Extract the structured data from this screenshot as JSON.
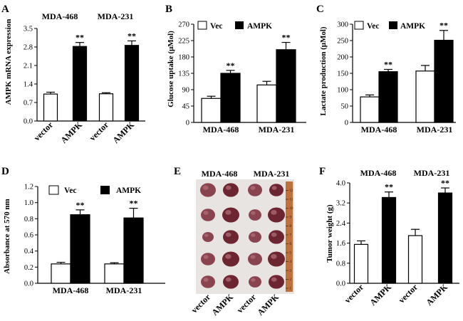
{
  "chart_data": [
    {
      "type": "bar",
      "panel": "A",
      "ylabel": "AMPK mRNA expression",
      "ylim": [
        0,
        3.5
      ],
      "yticks": [
        "0.0",
        "0.7",
        "1.4",
        "2.1",
        "2.8",
        "3.5"
      ],
      "column_titles": [
        "MDA-468",
        "MDA-231"
      ],
      "categories": [
        "vector",
        "AMPK",
        "vector",
        "AMPK"
      ],
      "values": [
        1.02,
        2.82,
        1.03,
        2.86
      ],
      "errors": [
        0.07,
        0.15,
        0.04,
        0.17
      ],
      "fills": [
        "white",
        "black",
        "white",
        "black"
      ],
      "annotations": [
        "",
        "**",
        "",
        "**"
      ]
    },
    {
      "type": "bar",
      "panel": "B",
      "ylabel": "Glucose uptake (μMol)",
      "ylim": [
        0,
        270
      ],
      "yticks": [
        "0",
        "45",
        "90",
        "135",
        "180",
        "225",
        "270"
      ],
      "legend": [
        "Vec",
        "AMPK"
      ],
      "categories": [
        "MDA-468",
        "MDA-231"
      ],
      "series": [
        {
          "name": "Vec",
          "values": [
            66,
            103
          ],
          "errors": [
            6,
            10
          ]
        },
        {
          "name": "AMPK",
          "values": [
            135,
            200
          ],
          "errors": [
            8,
            20
          ]
        }
      ],
      "annotations": [
        "**",
        "**"
      ]
    },
    {
      "type": "bar",
      "panel": "C",
      "ylabel": "Lactate production (μMol)",
      "ylim": [
        0,
        300
      ],
      "yticks": [
        "0",
        "50",
        "100",
        "150",
        "200",
        "250",
        "300"
      ],
      "legend": [
        "Vec",
        "AMPK"
      ],
      "categories": [
        "MDA-468",
        "MDA-231"
      ],
      "series": [
        {
          "name": "Vec",
          "values": [
            78,
            157
          ],
          "errors": [
            6,
            17
          ]
        },
        {
          "name": "AMPK",
          "values": [
            155,
            251
          ],
          "errors": [
            7,
            30
          ]
        }
      ],
      "annotations": [
        "**",
        "**"
      ]
    },
    {
      "type": "bar",
      "panel": "D",
      "ylabel": "Absorbance at 570 nm",
      "ylim": [
        0,
        1.2
      ],
      "yticks": [
        "0.0",
        "0.2",
        "0.4",
        "0.6",
        "0.8",
        "1.0",
        "1.2"
      ],
      "legend": [
        "Vec",
        "AMPK"
      ],
      "categories": [
        "MDA-468",
        "MDA-231"
      ],
      "series": [
        {
          "name": "Vec",
          "values": [
            0.24,
            0.24
          ],
          "errors": [
            0.02,
            0.015
          ]
        },
        {
          "name": "AMPK",
          "values": [
            0.85,
            0.81
          ],
          "errors": [
            0.06,
            0.12
          ]
        }
      ],
      "annotations": [
        "**",
        "**"
      ]
    },
    {
      "type": "bar",
      "panel": "F",
      "ylabel": "Tumor weight (g)",
      "ylim": [
        0,
        4.0
      ],
      "yticks": [
        "0.0",
        "0.8",
        "1.6",
        "2.4",
        "3.2",
        "4.0"
      ],
      "column_titles": [
        "MDA-468",
        "MDA-231"
      ],
      "categories": [
        "vector",
        "AMPK",
        "vector",
        "AMPK"
      ],
      "values": [
        1.55,
        3.42,
        1.9,
        3.6
      ],
      "errors": [
        0.14,
        0.22,
        0.25,
        0.2
      ],
      "fills": [
        "white",
        "black",
        "white",
        "black"
      ],
      "annotations": [
        "",
        "**",
        "",
        "**"
      ]
    }
  ],
  "photo_panel": {
    "panel": "E",
    "column_titles": [
      "MDA-468",
      "MDA-231"
    ],
    "lane_labels": [
      "vector",
      "AMPK",
      "vector",
      "AMPK"
    ],
    "ruler_marks": [
      "1",
      "2",
      "3",
      "4",
      "5",
      "6",
      "7",
      "8",
      "9",
      "10",
      "11",
      "12"
    ]
  },
  "colors": {
    "bar_black": "#000000",
    "bar_white": "#ffffff",
    "photo_bg": "#e8e4e1",
    "tumor": "#7b2f3a",
    "ruler": "#c0703a"
  }
}
